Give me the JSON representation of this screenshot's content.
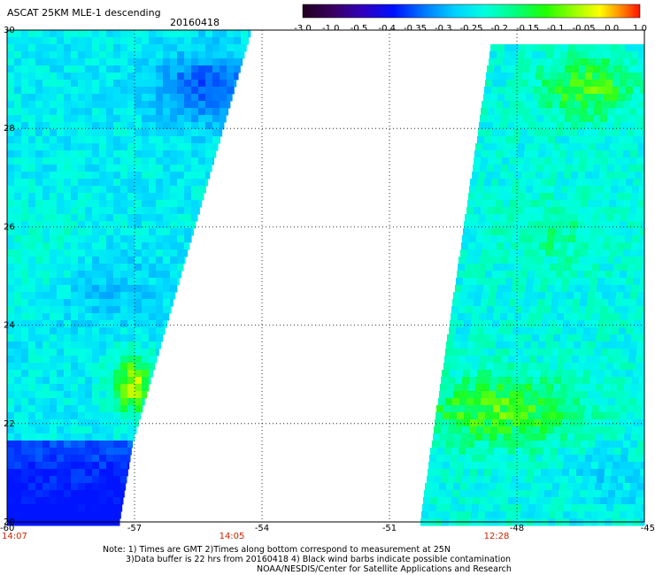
{
  "title": {
    "product": "ASCAT 25KM MLE-1 descending",
    "date": "20160418"
  },
  "colorbar": {
    "labels": [
      "-3.0",
      "-1.0",
      "-0.5",
      "-0.4",
      "-0.35",
      "-0.3",
      "-0.25",
      "-0.2",
      "-0.15",
      "-0.1",
      "-0.05",
      "0.0",
      "1.0"
    ],
    "colors": [
      "#200020",
      "#4a0088",
      "#2a00d8",
      "#0030ff",
      "#0090ff",
      "#00d8ff",
      "#00ffd8",
      "#00ff70",
      "#40ff00",
      "#a0ff00",
      "#ffff00",
      "#ff8800",
      "#ff1800"
    ]
  },
  "map": {
    "lon_range": [
      -60,
      -45
    ],
    "lat_range": [
      20,
      30
    ],
    "lon_ticks": [
      "-60",
      "-57",
      "-54",
      "-51",
      "-48",
      "-45"
    ],
    "lat_ticks": [
      "30",
      "28",
      "26",
      "24",
      "22",
      "20"
    ],
    "time_labels": [
      "14:07",
      "14:05",
      "12:28"
    ]
  },
  "notes": {
    "line1": "Note: 1) Times are GMT 2)Times along bottom correspond to measurement at 25N",
    "line2": "3)Data buffer is 22 hrs from 20160418 4) Black wind barbs indicate possible contamination",
    "line3": "NOAA/NESDIS/Center for Satellite Applications and Research"
  }
}
